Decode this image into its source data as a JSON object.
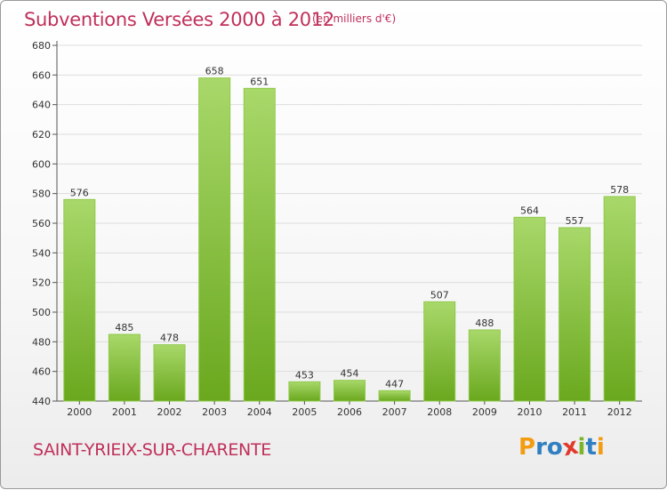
{
  "title": "Subventions Versées 2000 à 2012",
  "unit_note": "(en milliers d'€)",
  "commune": "SAINT-YRIEIX-SUR-CHARENTE",
  "logo": {
    "text": "Proxiti",
    "letters": [
      "P",
      "r",
      "o",
      "x",
      "i",
      "t",
      "i"
    ],
    "colors": [
      "#f39c12",
      "#2f7fc1",
      "#2f7fc1",
      "#e03a2c",
      "#7ab52a",
      "#2f7fc1",
      "#f39c12"
    ]
  },
  "colors": {
    "bar_light": "#a8d86a",
    "bar_dark": "#6aa81e",
    "title": "#c0305a",
    "grid": "#dddddd"
  },
  "chart_data": {
    "type": "bar",
    "title": "Subventions Versées 2000 à 2012",
    "ylabel": "en milliers d'€",
    "xlabel": "",
    "categories": [
      "2000",
      "2001",
      "2002",
      "2003",
      "2004",
      "2005",
      "2006",
      "2007",
      "2008",
      "2009",
      "2010",
      "2011",
      "2012"
    ],
    "values": [
      576,
      485,
      478,
      658,
      651,
      453,
      454,
      447,
      507,
      488,
      564,
      557,
      578
    ],
    "ylim": [
      440,
      680
    ],
    "yticks": [
      440,
      460,
      480,
      500,
      520,
      540,
      560,
      580,
      600,
      620,
      640,
      660,
      680
    ],
    "grid": true,
    "legend": "none"
  }
}
